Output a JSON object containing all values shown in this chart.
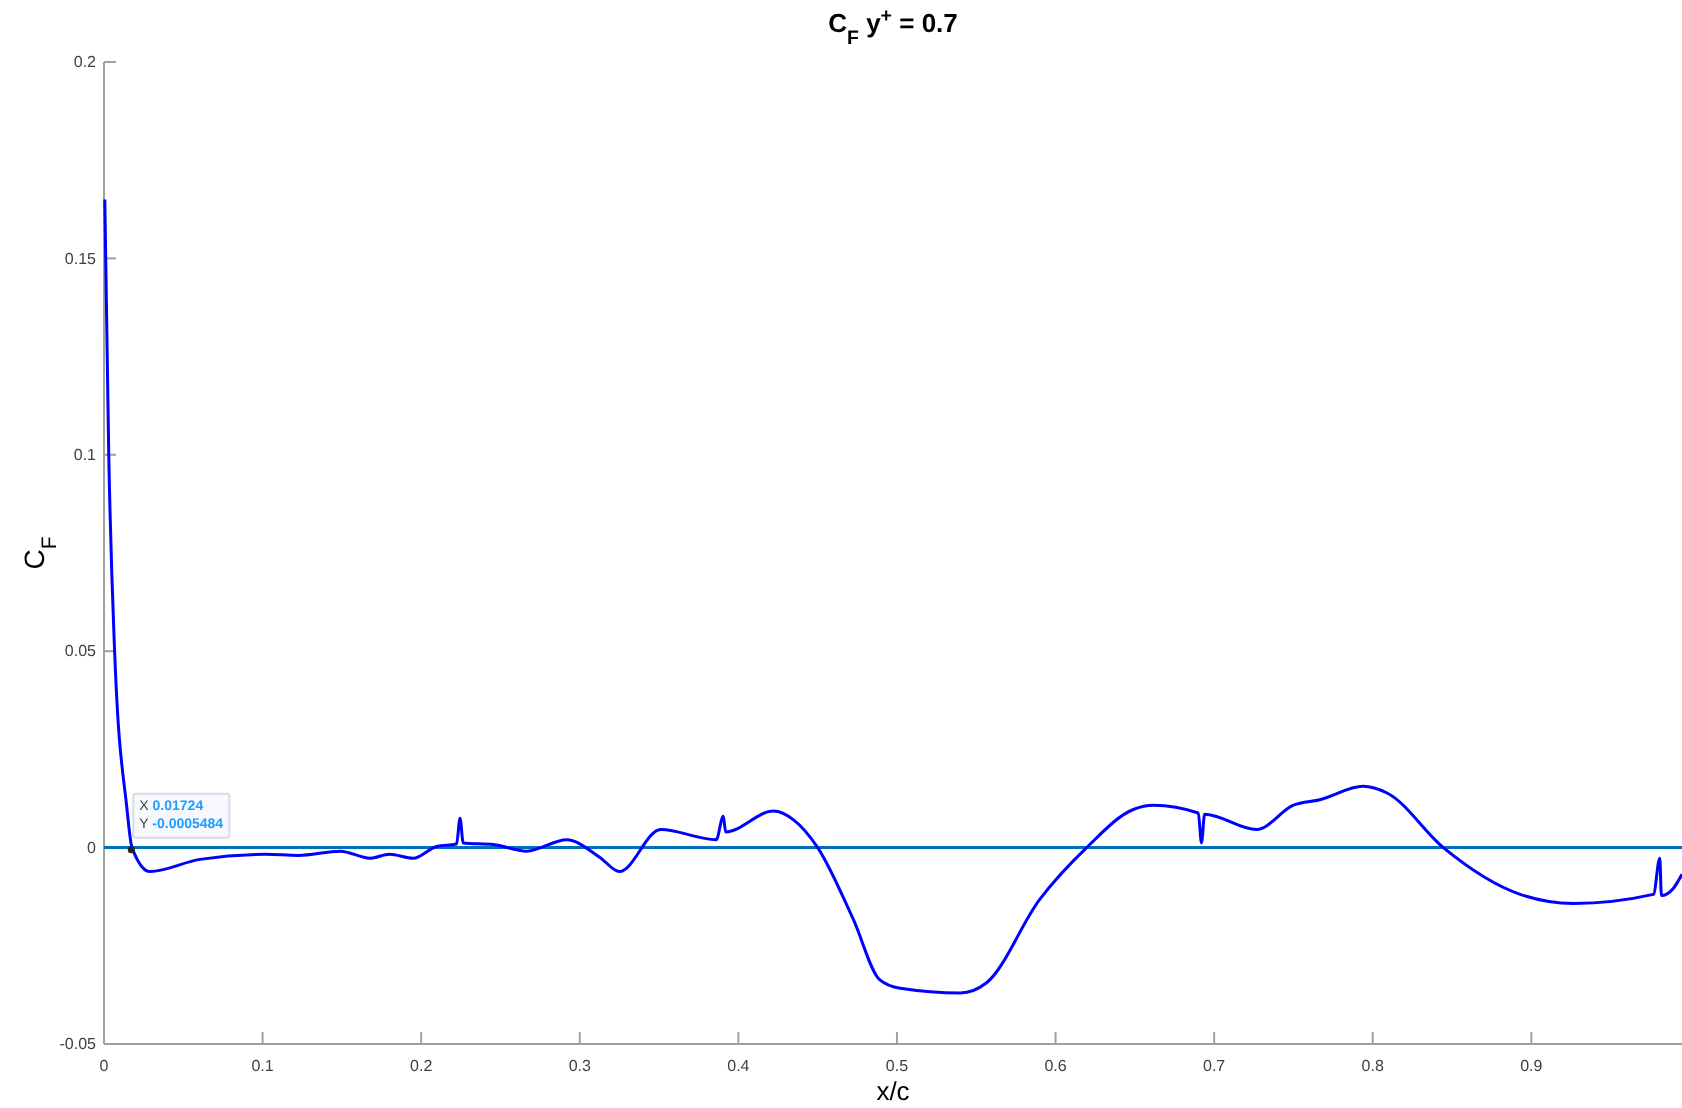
{
  "chart_data": {
    "type": "line",
    "title": "C$_{F}$ y$^{+}$ = 0.7",
    "xlabel": "x/c",
    "ylabel": "C$_{F}$",
    "xlim": [
      0,
      0.995
    ],
    "xticks": [
      0,
      0.1,
      0.2,
      0.3,
      0.4,
      0.5,
      0.6,
      0.7,
      0.8,
      0.9
    ],
    "ylim": [
      -0.05,
      0.2
    ],
    "yticks": [
      -0.05,
      0,
      0.05,
      0.1,
      0.15,
      0.2
    ],
    "grid": false,
    "marker": "none",
    "line_style": "solid",
    "series": [
      {
        "color": "#0000ff",
        "x": [
          0.0005,
          0.003,
          0.0067,
          0.0143,
          0.01765,
          0.029,
          0.0605,
          0.102,
          0.1225,
          0.149,
          0.1677,
          0.18,
          0.195,
          0.2097,
          0.2223,
          0.2245,
          0.2265,
          0.2455,
          0.2665,
          0.2917,
          0.3127,
          0.325,
          0.351,
          0.386,
          0.3905,
          0.392,
          0.422,
          0.435,
          0.45,
          0.4725,
          0.489,
          0.502,
          0.54,
          0.5565,
          0.59,
          0.6196,
          0.649,
          0.6616,
          0.69,
          0.692,
          0.694,
          0.7268,
          0.75,
          0.7667,
          0.794,
          0.809,
          0.8445,
          0.893,
          0.9265,
          0.977,
          0.981,
          0.982,
          0.9895,
          0.995
        ],
        "values": [
          0.165,
          0.1,
          0.05,
          0.0105,
          0,
          -0.0061,
          -0.003,
          -0.0017,
          -0.002,
          -0.0009,
          -0.0027,
          -0.0017,
          -0.0027,
          0.0003,
          0.0009,
          0.0075,
          0.0012,
          0.0008,
          -0.0009,
          0.002,
          -0.0025,
          -0.0061,
          0.0046,
          0.002,
          0.008,
          0.004,
          0.0093,
          0.007,
          0,
          -0.0183,
          -0.0336,
          -0.0358,
          -0.037,
          -0.0344,
          -0.0132,
          0,
          0.0097,
          0.0108,
          0.0088,
          0.0012,
          0.0085,
          0.0046,
          0.0108,
          0.0122,
          0.0156,
          0.0139,
          0,
          -0.0119,
          -0.0142,
          -0.0119,
          -0.0027,
          -0.0122,
          -0.0104,
          -0.0068
        ]
      }
    ],
    "ref_lines": [
      {
        "axis": "y",
        "value": 0,
        "color": "#0072bd"
      }
    ],
    "annotations": [
      {
        "text": "X 0.01724\nY -0.0005484",
        "x": 0.01724,
        "y": -0.0005484
      }
    ]
  }
}
